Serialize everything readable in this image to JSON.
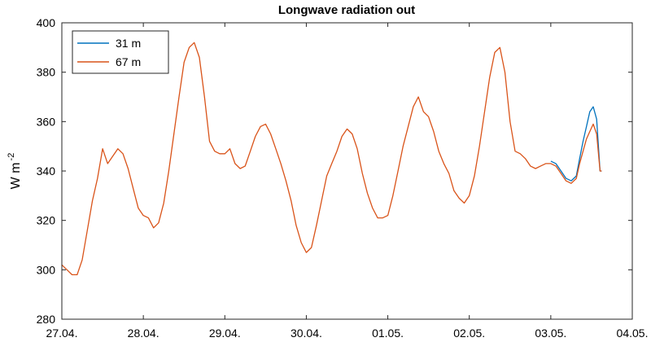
{
  "chart_data": {
    "type": "line",
    "title": "Longwave radiation out",
    "ylabel": "W m",
    "ylabel_exponent": "-2",
    "xlabel": "",
    "xlim": [
      "2022-04-27",
      "2022-05-04"
    ],
    "ylim": [
      280,
      400
    ],
    "x_ticks": [
      "27.04.",
      "28.04.",
      "29.04.",
      "30.04.",
      "01.05.",
      "02.05.",
      "03.05.",
      "04.05."
    ],
    "y_ticks": [
      280,
      300,
      320,
      340,
      360,
      380,
      400
    ],
    "grid": false,
    "legend_position": "top-left",
    "series": [
      {
        "name": "31 m",
        "color": "#0072BD",
        "points": [
          [
            "2022-05-03 00:00",
            344
          ],
          [
            "2022-05-03 01:30",
            343
          ],
          [
            "2022-05-03 03:00",
            340
          ],
          [
            "2022-05-03 04:30",
            337
          ],
          [
            "2022-05-03 06:00",
            336
          ],
          [
            "2022-05-03 07:30",
            338
          ],
          [
            "2022-05-03 08:30",
            345
          ],
          [
            "2022-05-03 09:30",
            352
          ],
          [
            "2022-05-03 10:30",
            358
          ],
          [
            "2022-05-03 11:30",
            364
          ],
          [
            "2022-05-03 12:30",
            366
          ],
          [
            "2022-05-03 13:30",
            361
          ],
          [
            "2022-05-03 14:30",
            340
          ],
          [
            "2022-05-03 15:00",
            340
          ]
        ]
      },
      {
        "name": "67 m",
        "color": "#D95319",
        "points": [
          [
            "2022-04-27 00:00",
            302
          ],
          [
            "2022-04-27 01:30",
            300
          ],
          [
            "2022-04-27 03:00",
            298
          ],
          [
            "2022-04-27 04:30",
            298
          ],
          [
            "2022-04-27 06:00",
            304
          ],
          [
            "2022-04-27 07:30",
            316
          ],
          [
            "2022-04-27 09:00",
            328
          ],
          [
            "2022-04-27 10:30",
            337
          ],
          [
            "2022-04-27 12:00",
            349
          ],
          [
            "2022-04-27 13:30",
            343
          ],
          [
            "2022-04-27 15:00",
            346
          ],
          [
            "2022-04-27 16:30",
            349
          ],
          [
            "2022-04-27 18:00",
            347
          ],
          [
            "2022-04-27 19:30",
            341
          ],
          [
            "2022-04-27 21:00",
            333
          ],
          [
            "2022-04-27 22:30",
            325
          ],
          [
            "2022-04-28 00:00",
            322
          ],
          [
            "2022-04-28 01:30",
            321
          ],
          [
            "2022-04-28 03:00",
            317
          ],
          [
            "2022-04-28 04:30",
            319
          ],
          [
            "2022-04-28 06:00",
            327
          ],
          [
            "2022-04-28 07:30",
            340
          ],
          [
            "2022-04-28 09:00",
            355
          ],
          [
            "2022-04-28 10:30",
            370
          ],
          [
            "2022-04-28 12:00",
            384
          ],
          [
            "2022-04-28 13:30",
            390
          ],
          [
            "2022-04-28 15:00",
            392
          ],
          [
            "2022-04-28 16:30",
            386
          ],
          [
            "2022-04-28 18:00",
            370
          ],
          [
            "2022-04-28 19:30",
            352
          ],
          [
            "2022-04-28 21:00",
            348
          ],
          [
            "2022-04-28 22:30",
            347
          ],
          [
            "2022-04-29 00:00",
            347
          ],
          [
            "2022-04-29 01:30",
            349
          ],
          [
            "2022-04-29 03:00",
            343
          ],
          [
            "2022-04-29 04:30",
            341
          ],
          [
            "2022-04-29 06:00",
            342
          ],
          [
            "2022-04-29 07:30",
            348
          ],
          [
            "2022-04-29 09:00",
            354
          ],
          [
            "2022-04-29 10:30",
            358
          ],
          [
            "2022-04-29 12:00",
            359
          ],
          [
            "2022-04-29 13:30",
            355
          ],
          [
            "2022-04-29 15:00",
            349
          ],
          [
            "2022-04-29 16:30",
            343
          ],
          [
            "2022-04-29 18:00",
            336
          ],
          [
            "2022-04-29 19:30",
            328
          ],
          [
            "2022-04-29 21:00",
            318
          ],
          [
            "2022-04-29 22:30",
            311
          ],
          [
            "2022-04-30 00:00",
            307
          ],
          [
            "2022-04-30 01:30",
            309
          ],
          [
            "2022-04-30 03:00",
            318
          ],
          [
            "2022-04-30 04:30",
            328
          ],
          [
            "2022-04-30 06:00",
            338
          ],
          [
            "2022-04-30 07:30",
            343
          ],
          [
            "2022-04-30 09:00",
            348
          ],
          [
            "2022-04-30 10:30",
            354
          ],
          [
            "2022-04-30 12:00",
            357
          ],
          [
            "2022-04-30 13:30",
            355
          ],
          [
            "2022-04-30 15:00",
            349
          ],
          [
            "2022-04-30 16:30",
            339
          ],
          [
            "2022-04-30 18:00",
            331
          ],
          [
            "2022-04-30 19:30",
            325
          ],
          [
            "2022-04-30 21:00",
            321
          ],
          [
            "2022-04-30 22:30",
            321
          ],
          [
            "2022-05-01 00:00",
            322
          ],
          [
            "2022-05-01 01:30",
            330
          ],
          [
            "2022-05-01 03:00",
            340
          ],
          [
            "2022-05-01 04:30",
            350
          ],
          [
            "2022-05-01 06:00",
            358
          ],
          [
            "2022-05-01 07:30",
            366
          ],
          [
            "2022-05-01 09:00",
            370
          ],
          [
            "2022-05-01 10:30",
            364
          ],
          [
            "2022-05-01 12:00",
            362
          ],
          [
            "2022-05-01 13:30",
            356
          ],
          [
            "2022-05-01 15:00",
            348
          ],
          [
            "2022-05-01 16:30",
            343
          ],
          [
            "2022-05-01 18:00",
            339
          ],
          [
            "2022-05-01 19:30",
            332
          ],
          [
            "2022-05-01 21:00",
            329
          ],
          [
            "2022-05-01 22:30",
            327
          ],
          [
            "2022-05-02 00:00",
            330
          ],
          [
            "2022-05-02 01:30",
            338
          ],
          [
            "2022-05-02 03:00",
            350
          ],
          [
            "2022-05-02 04:30",
            364
          ],
          [
            "2022-05-02 06:00",
            378
          ],
          [
            "2022-05-02 07:30",
            388
          ],
          [
            "2022-05-02 09:00",
            390
          ],
          [
            "2022-05-02 10:30",
            380
          ],
          [
            "2022-05-02 12:00",
            360
          ],
          [
            "2022-05-02 13:30",
            348
          ],
          [
            "2022-05-02 15:00",
            347
          ],
          [
            "2022-05-02 16:30",
            345
          ],
          [
            "2022-05-02 18:00",
            342
          ],
          [
            "2022-05-02 19:30",
            341
          ],
          [
            "2022-05-02 21:00",
            342
          ],
          [
            "2022-05-02 22:30",
            343
          ],
          [
            "2022-05-03 00:00",
            343
          ],
          [
            "2022-05-03 01:30",
            342
          ],
          [
            "2022-05-03 03:00",
            339
          ],
          [
            "2022-05-03 04:30",
            336
          ],
          [
            "2022-05-03 06:00",
            335
          ],
          [
            "2022-05-03 07:30",
            337
          ],
          [
            "2022-05-03 08:30",
            343
          ],
          [
            "2022-05-03 09:30",
            348
          ],
          [
            "2022-05-03 10:30",
            353
          ],
          [
            "2022-05-03 11:30",
            356
          ],
          [
            "2022-05-03 12:30",
            359
          ],
          [
            "2022-05-03 13:30",
            355
          ],
          [
            "2022-05-03 14:30",
            340
          ],
          [
            "2022-05-03 15:00",
            340
          ]
        ]
      }
    ]
  }
}
